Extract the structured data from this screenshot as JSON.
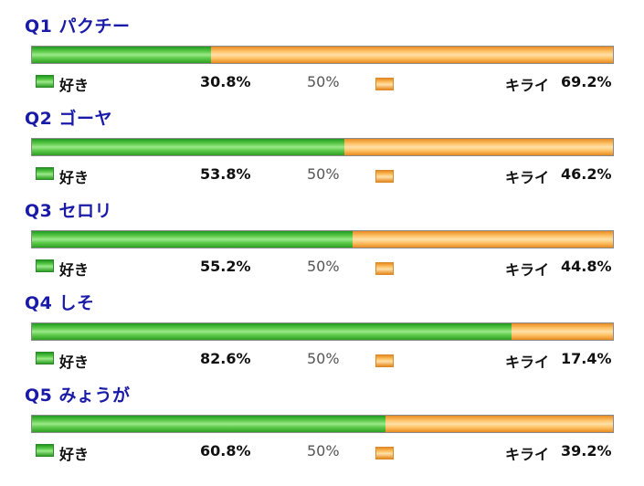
{
  "chart_data": {
    "type": "bar",
    "stacked": true,
    "orientation": "horizontal",
    "midpoint_label": "50%",
    "like_label": "好き",
    "dislike_label": "キライ",
    "colors": {
      "like": "#4cbf3c",
      "dislike": "#f6a83c",
      "title": "#1a1aa8"
    },
    "questions": [
      {
        "title": "Q1 パクチー",
        "like": 30.8,
        "dislike": 69.2,
        "like_text": "30.8%",
        "dislike_text": "69.2%"
      },
      {
        "title": "Q2 ゴーヤ",
        "like": 53.8,
        "dislike": 46.2,
        "like_text": "53.8%",
        "dislike_text": "46.2%"
      },
      {
        "title": "Q3 セロリ",
        "like": 55.2,
        "dislike": 44.8,
        "like_text": "55.2%",
        "dislike_text": "44.8%"
      },
      {
        "title": "Q4 しそ",
        "like": 82.6,
        "dislike": 17.4,
        "like_text": "82.6%",
        "dislike_text": "17.4%"
      },
      {
        "title": "Q5 みょうが",
        "like": 60.8,
        "dislike": 39.2,
        "like_text": "60.8%",
        "dislike_text": "39.2%"
      }
    ]
  }
}
